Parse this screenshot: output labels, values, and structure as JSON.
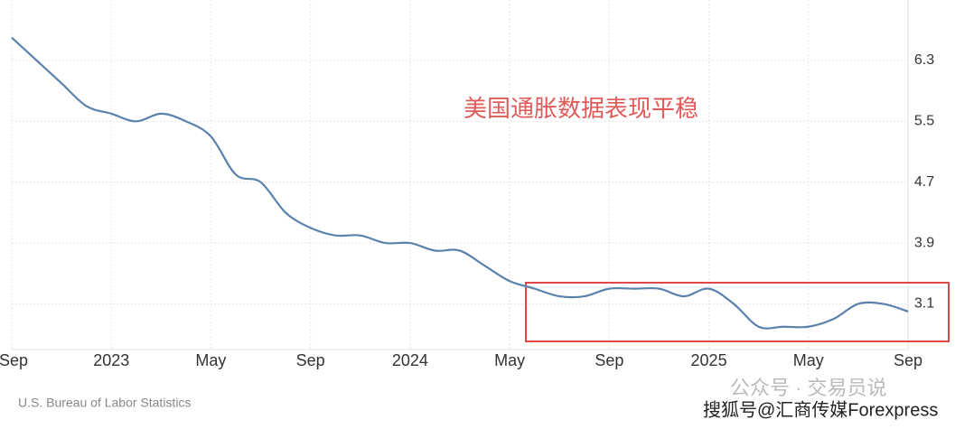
{
  "chart_data": {
    "type": "line",
    "categories": [
      "Sep",
      null,
      null,
      null,
      "2023",
      null,
      null,
      null,
      "May",
      null,
      null,
      null,
      "Sep",
      null,
      null,
      null,
      "2024",
      null,
      null,
      null,
      "May",
      null,
      null,
      null,
      "Sep",
      null,
      null,
      null,
      "2025",
      null,
      null,
      null,
      "May",
      null,
      null,
      null,
      "Sep"
    ],
    "series": [
      {
        "color": "#5b82ab",
        "values": [
          6.6,
          6.3,
          6.0,
          5.7,
          5.6,
          5.5,
          5.6,
          5.5,
          5.3,
          4.8,
          4.7,
          4.3,
          4.1,
          4.0,
          4.0,
          3.9,
          3.9,
          3.8,
          3.8,
          3.6,
          3.4,
          3.3,
          3.2,
          3.2,
          3.3,
          3.3,
          3.3,
          3.2,
          3.3,
          3.1,
          2.8,
          2.8,
          2.8,
          2.9,
          3.1,
          3.1,
          3.0
        ]
      }
    ],
    "ylim": [
      2.5,
      7.0
    ],
    "yticks": [
      3.1,
      3.9,
      4.7,
      5.5,
      6.3
    ],
    "grid": true,
    "annotation": "美国通胀数据表现平稳",
    "source": "U.S. Bureau of Labor Statistics",
    "watermarks": [
      "公众号 · 交易员说",
      "搜狐号@汇商传媒Forexpress"
    ]
  }
}
